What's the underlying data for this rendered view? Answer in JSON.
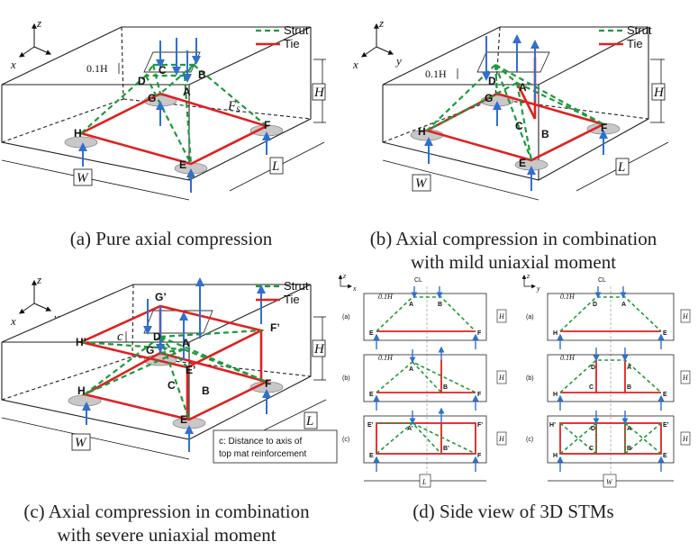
{
  "legend": {
    "strut": "Strut",
    "tie": "Tie"
  },
  "colors": {
    "strut": "#1e9a3c",
    "tie": "#e02020",
    "arrow": "#2f6fd0",
    "support": "#c8c8c8"
  },
  "axes": {
    "x": "x",
    "y": "y",
    "z": "z"
  },
  "dims": {
    "H": "H",
    "L": "L",
    "W": "W",
    "depth": "0.1H",
    "Fs": "F",
    "Fs_sub": "S",
    "c": "c"
  },
  "panel_a": {
    "nodes": {
      "A": "A",
      "B": "B",
      "C": "C",
      "D": "D",
      "E": "E",
      "F": "F",
      "G": "G",
      "H": "H"
    },
    "caption": "(a) Pure axial compression"
  },
  "panel_b": {
    "nodes": {
      "A": "A",
      "B": "B",
      "C": "C",
      "D": "D",
      "E": "E",
      "F": "F",
      "G": "G",
      "H": "H"
    },
    "caption_line1": "(b) Axial compression in combination",
    "caption_line2": "with mild uniaxial moment"
  },
  "panel_c": {
    "nodes": {
      "A": "A",
      "B": "B",
      "C": "C",
      "D": "D",
      "E": "E",
      "F": "F",
      "G": "G",
      "H": "H",
      "Gp": "G’",
      "Hp": "H’",
      "Fp": "F’",
      "Ep": "E’"
    },
    "note_line1": "c: Distance to axis of",
    "note_line2": "top mat reinforcement",
    "caption_line1": "(c) Axial compression in combination",
    "caption_line2": "with severe uniaxial moment"
  },
  "panel_d": {
    "cl": "CL",
    "row_labels": [
      "(a)",
      "(b)",
      "(c)"
    ],
    "left_nodes": {
      "A": "A",
      "B": "B",
      "E": "E",
      "F": "F",
      "Ap": "A’",
      "Bp": "B’",
      "Ep": "E’",
      "Fp": "F’"
    },
    "right_nodes": {
      "D": "D",
      "A": "A",
      "H": "H",
      "E": "E",
      "C": "C",
      "B": "B",
      "Hp": "H’",
      "Ep": "E’"
    },
    "dim_L": "L",
    "dim_W": "W",
    "caption": "(d) Side view of 3D STMs"
  }
}
